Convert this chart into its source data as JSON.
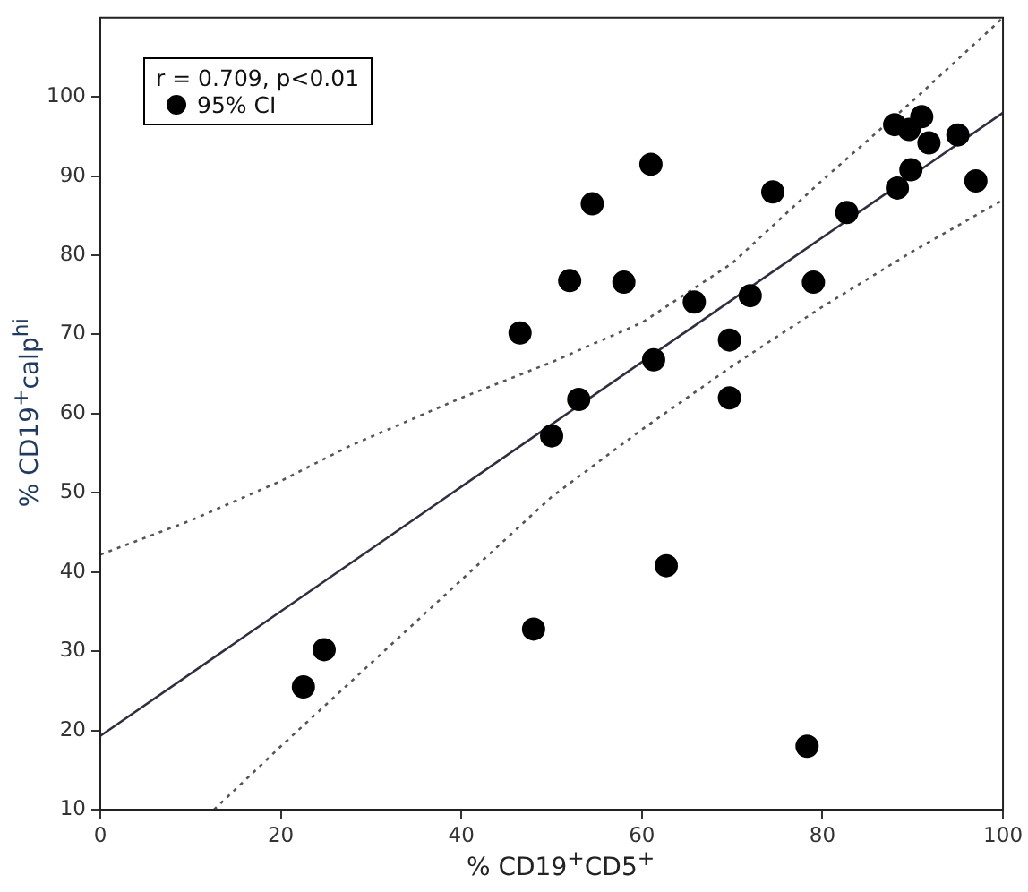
{
  "chart_data": {
    "type": "scatter",
    "xlabel": "% CD19$^{+}$CD5$^{+}$",
    "ylabel": "% CD19$^{+}$calp$^{hi}$",
    "legend_title": "r = 0.709, p<0.01",
    "legend": "top left",
    "grid": false,
    "xlim": [
      0,
      100
    ],
    "xticks": [
      0,
      20,
      40,
      60,
      80,
      100
    ],
    "ylim": [
      10,
      110
    ],
    "yticks": [
      10,
      20,
      30,
      40,
      50,
      60,
      70,
      80,
      90,
      100
    ],
    "series": [
      {
        "name": "95% CI",
        "marker": "circle",
        "color": "#000000",
        "x": [
          22.5,
          24.8,
          46.5,
          48,
          50,
          52,
          53,
          54.5,
          58,
          61,
          61.3,
          62.7,
          65.8,
          69.7,
          69.7,
          72,
          74.5,
          78.3,
          79,
          82.7,
          88,
          88.3,
          89.6,
          89.8,
          91,
          91.3,
          91.8,
          95,
          97
        ],
        "values": [
          25.5,
          30.2,
          70.2,
          32.8,
          57.2,
          76.8,
          61.8,
          86.5,
          76.6,
          91.5,
          66.8,
          40.8,
          74.1,
          69.3,
          62,
          74.9,
          88,
          18,
          76.6,
          85.4,
          96.5,
          88.5,
          95.9,
          90.8,
          97.5,
          null,
          94.2,
          95.2,
          89.4
        ]
      },
      {
        "type": "line",
        "marker": "none",
        "color": "#2f2f3f",
        "line_style": "solid",
        "x": [
          0,
          100
        ],
        "values": [
          19.3,
          98
        ]
      },
      {
        "type": "line",
        "marker": "none",
        "color": "#555555",
        "line_style": "dotted",
        "x": [
          0,
          10,
          20,
          27.6,
          40,
          50,
          60,
          70,
          80,
          90,
          100
        ],
        "values": [
          42.2,
          46.5,
          51.5,
          55.9,
          62,
          66.5,
          71.5,
          79,
          89.5,
          99.5,
          110
        ]
      },
      {
        "type": "line",
        "marker": "none",
        "color": "#555555",
        "line_style": "dotted",
        "x": [
          12.6,
          20,
          30,
          40,
          50,
          60,
          70,
          80,
          90,
          100
        ],
        "values": [
          10,
          18,
          28.5,
          39,
          49.5,
          58,
          66,
          73.5,
          80.5,
          87
        ]
      }
    ]
  }
}
